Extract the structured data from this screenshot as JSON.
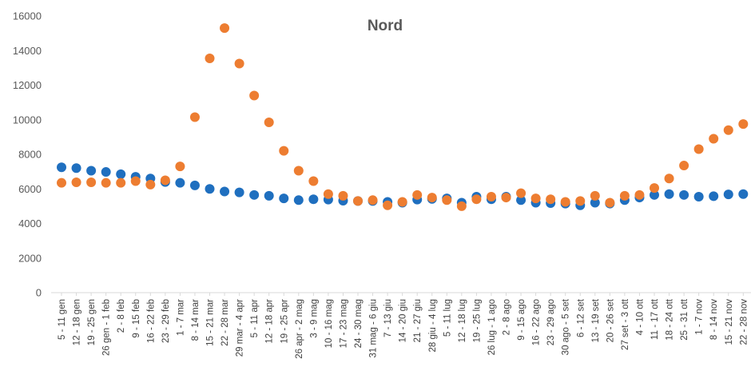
{
  "chart_data": {
    "type": "scatter",
    "title": "Nord",
    "xlabel": "",
    "ylabel": "",
    "ylim": [
      0,
      16000
    ],
    "yticks": [
      0,
      2000,
      4000,
      6000,
      8000,
      10000,
      12000,
      14000,
      16000
    ],
    "grid": false,
    "legend": "none",
    "categories": [
      "5 - 11 gen",
      "12 - 18 gen",
      "19 - 25 gen",
      "26 gen - 1 feb",
      "2 - 8 feb",
      "9 - 15 feb",
      "16 - 22 feb",
      "23 - 29 feb",
      "1 - 7 mar",
      "8 - 14 mar",
      "15 - 21 mar",
      "22 - 28 mar",
      "29 mar - 4 apr",
      "5 - 11 apr",
      "12 - 18 apr",
      "19 - 25 apr",
      "26 apr - 2 mag",
      "3 - 9 mag",
      "10 - 16 mag",
      "17 - 23 mag",
      "24 - 30 mag",
      "31 mag - 6 giu",
      "7 - 13 giu",
      "14 - 20 giu",
      "21 - 27 giu",
      "28 giu - 4 lug",
      "5 - 11 lug",
      "12 - 18 lug",
      "19 - 25 lug",
      "26 lug - 1 ago",
      "2 - 8 ago",
      "9 - 15 ago",
      "16 - 22 ago",
      "23 - 29 ago",
      "30 ago - 5 set",
      "6 - 12 set",
      "13 - 19 set",
      "20 - 26 set",
      "27 set - 3 ott",
      "4 - 10 ott",
      "11 - 17 ott",
      "18 - 24 ott",
      "25 - 31 ott",
      "1 - 7 nov",
      "8 - 14 nov",
      "15 - 21 nov",
      "22 - 28 nov"
    ],
    "series": [
      {
        "color": "#1f6fbf",
        "values": [
          7250,
          7200,
          7050,
          6980,
          6850,
          6700,
          6600,
          6400,
          6350,
          6200,
          6000,
          5850,
          5800,
          5650,
          5600,
          5450,
          5350,
          5400,
          5380,
          5320,
          5300,
          5300,
          5250,
          5200,
          5380,
          5420,
          5450,
          5200,
          5550,
          5400,
          5550,
          5350,
          5200,
          5180,
          5150,
          5050,
          5200,
          5150,
          5350,
          5500,
          5650,
          5700,
          5650,
          5550,
          5580,
          5680,
          5700
        ]
      },
      {
        "color": "#ed7d31",
        "values": [
          6350,
          6380,
          6380,
          6350,
          6350,
          6450,
          6250,
          6500,
          7300,
          10150,
          13550,
          15300,
          13250,
          11400,
          9850,
          8200,
          7050,
          6450,
          5700,
          5600,
          5300,
          5350,
          5050,
          5250,
          5650,
          5500,
          5350,
          5000,
          5400,
          5550,
          5500,
          5750,
          5450,
          5400,
          5250,
          5300,
          5600,
          5200,
          5600,
          5650,
          6050,
          6600,
          7350,
          8300,
          8900,
          9400,
          9750
        ]
      }
    ]
  }
}
